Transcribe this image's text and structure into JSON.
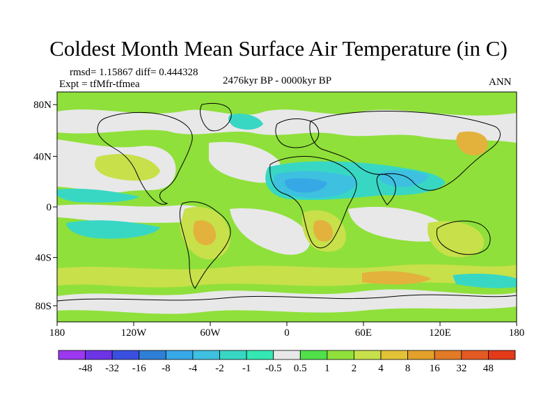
{
  "title": "Coldest Month Mean Surface Air Temperature (in C)",
  "stats": {
    "rmsd_diff": "rmsd= 1.15867 diff= 0.444328",
    "expt": "Expt = tfMfr-tfmea",
    "period": "2476kyr BP - 0000kyr BP",
    "season": "ANN"
  },
  "map": {
    "lat_ticks": [
      "80N",
      "40N",
      "0",
      "40S",
      "80S"
    ],
    "lon_ticks": [
      "180",
      "120W",
      "60W",
      "0",
      "60E",
      "120E",
      "180"
    ],
    "colors": {
      "neutral": "#e8e8e8",
      "warm1": "#8fe03a",
      "warm2": "#c8e04a",
      "warm3": "#e3b23c",
      "warm4": "#e3a02a",
      "cool1": "#38d7c4",
      "cool2": "#3ec0e0",
      "cool3": "#37a8e6",
      "cool4": "#2f7fd6",
      "coast": "#000000"
    }
  },
  "colorbar": {
    "labels": [
      "-48",
      "-32",
      "-16",
      "-8",
      "-4",
      "-2",
      "-1",
      "-0.5",
      "0.5",
      "1",
      "2",
      "4",
      "8",
      "16",
      "32",
      "48"
    ],
    "colors": [
      "#9b38f0",
      "#6d34e6",
      "#3a4fe0",
      "#2f7fd6",
      "#37a8e6",
      "#3ec0e0",
      "#38d7c4",
      "#33e8b3",
      "#e8e8e8",
      "#4fe04a",
      "#8fe03a",
      "#c8e04a",
      "#e3c237",
      "#e3a02a",
      "#e37a26",
      "#e35a22",
      "#e33a1a"
    ]
  }
}
